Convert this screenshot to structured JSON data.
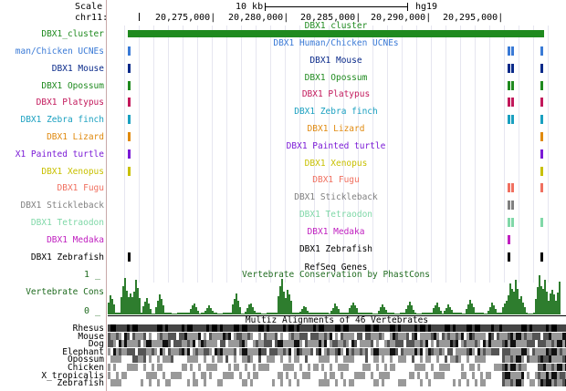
{
  "ruler": {
    "scale_label": "Scale",
    "chrom_label": "chr11:",
    "scale_value": "10 kb",
    "assembly": "hg19",
    "positions": [
      "20,275,000|",
      "20,280,000|",
      "20,285,000|",
      "20,290,000|",
      "20,295,000|"
    ]
  },
  "tracks": [
    {
      "label": "DBX1_cluster",
      "center": "DBX1_cluster",
      "color": "#1f8a1f"
    },
    {
      "label": "man/Chicken UCNEs",
      "center": "DBX1 Human/Chicken UCNEs",
      "color": "#3a7ad6"
    },
    {
      "label": "DBX1 Mouse",
      "center": "DBX1 Mouse",
      "color": "#0a2a8a"
    },
    {
      "label": "DBX1 Opossum",
      "center": "DBX1 Opossum",
      "color": "#1f8a1f"
    },
    {
      "label": "DBX1 Platypus",
      "center": "DBX1 Platypus",
      "color": "#c2185b"
    },
    {
      "label": "DBX1 Zebra finch",
      "center": "DBX1 Zebra finch",
      "color": "#1aa0c0"
    },
    {
      "label": "DBX1 Lizard",
      "center": "DBX1 Lizard",
      "color": "#e08a10"
    },
    {
      "label": "X1 Painted turtle",
      "center": "DBX1 Painted turtle",
      "color": "#7a1ad6"
    },
    {
      "label": "DBX1 Xenopus",
      "center": "DBX1 Xenopus",
      "color": "#c8c000"
    },
    {
      "label": "DBX1 Fugu",
      "center": "DBX1 Fugu",
      "color": "#f07060"
    },
    {
      "label": "DBX1 Stickleback",
      "center": "DBX1 Stickleback",
      "color": "#808080"
    },
    {
      "label": "DBX1 Tetraodon",
      "center": "DBX1 Tetraodon",
      "color": "#80d8a8"
    },
    {
      "label": "DBX1 Medaka",
      "center": "DBX1 Medaka",
      "color": "#c020c0"
    },
    {
      "label": "DBX1 Zebrafish",
      "center": "DBX1 Zebrafish",
      "color": "#000000"
    }
  ],
  "refseq": {
    "center": "RefSeq Genes"
  },
  "conservation": {
    "label": "Vertebrate Cons",
    "center": "Vertebrate Conservation by PhastCons",
    "max": "1 _",
    "min": "0 _",
    "color": "#2e7d2e"
  },
  "multiz": {
    "center": "Multiz Alignments of 46 Vertebrates",
    "species": [
      "Rhesus",
      "Mouse",
      "Dog",
      "Elephant",
      "Opossum",
      "Chicken",
      "X_tropicalis",
      "Zebrafish"
    ]
  }
}
